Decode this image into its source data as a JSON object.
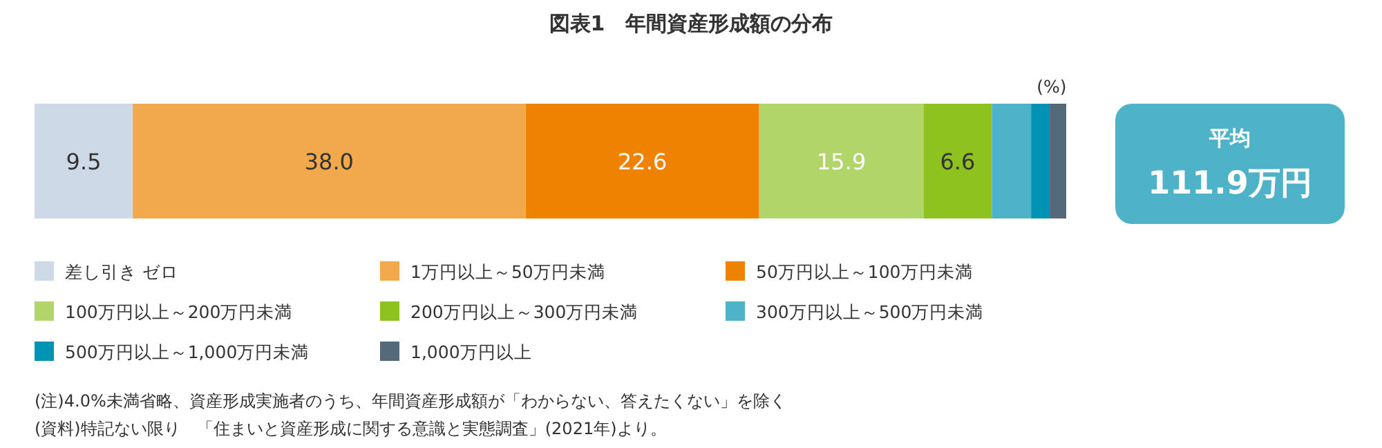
{
  "chart_data": {
    "type": "bar",
    "orientation": "horizontal",
    "stacked": true,
    "title": "図表1　年間資産形成額の分布",
    "categories": [
      null
    ],
    "xlim": [
      0,
      100
    ],
    "tick_labels": false,
    "legend": "bottom",
    "series": [
      {
        "name": "差し引き ゼロ",
        "color": "#cdd9e6",
        "values": [
          9.5
        ],
        "value_labels": [
          "9.5"
        ]
      },
      {
        "name": "1万円以上～50万円未満",
        "color": "#f2a94c",
        "values": [
          38.0
        ],
        "value_labels": [
          "38.0"
        ]
      },
      {
        "name": "50万円以上～100万円未満",
        "color": "#ef8200",
        "values": [
          22.6
        ],
        "value_labels": [
          "22.6"
        ]
      },
      {
        "name": "100万円以上～200万円未満",
        "color": "#b2d56a",
        "values": [
          15.9
        ],
        "value_labels": [
          "15.9"
        ]
      },
      {
        "name": "200万円以上～300万円未満",
        "color": "#8dc21f",
        "values": [
          6.6
        ],
        "value_labels": [
          "6.6"
        ]
      },
      {
        "name": "300万円以上～500万円未満",
        "color": "#4eb3c8",
        "values": [
          3.8
        ],
        "value_labels": [
          null
        ]
      },
      {
        "name": "500万円以上～1,000万円未満",
        "color": "#0093b4",
        "values": [
          1.8
        ],
        "value_labels": [
          null
        ]
      },
      {
        "name": "1,000万円以上",
        "color": "#546a7b",
        "values": [
          1.6
        ],
        "value_labels": [
          null
        ]
      }
    ],
    "annotations": [
      "(%)",
      "平均",
      "111.9万円",
      "(注)4.0%未満省略、資産形成実施者のうち、年間資産形成額が「わからない、答えたくない」を除く",
      "(資料)特記ない限り　「住まいと資産形成に関する意識と実態調査」(2021年)より。"
    ]
  }
}
